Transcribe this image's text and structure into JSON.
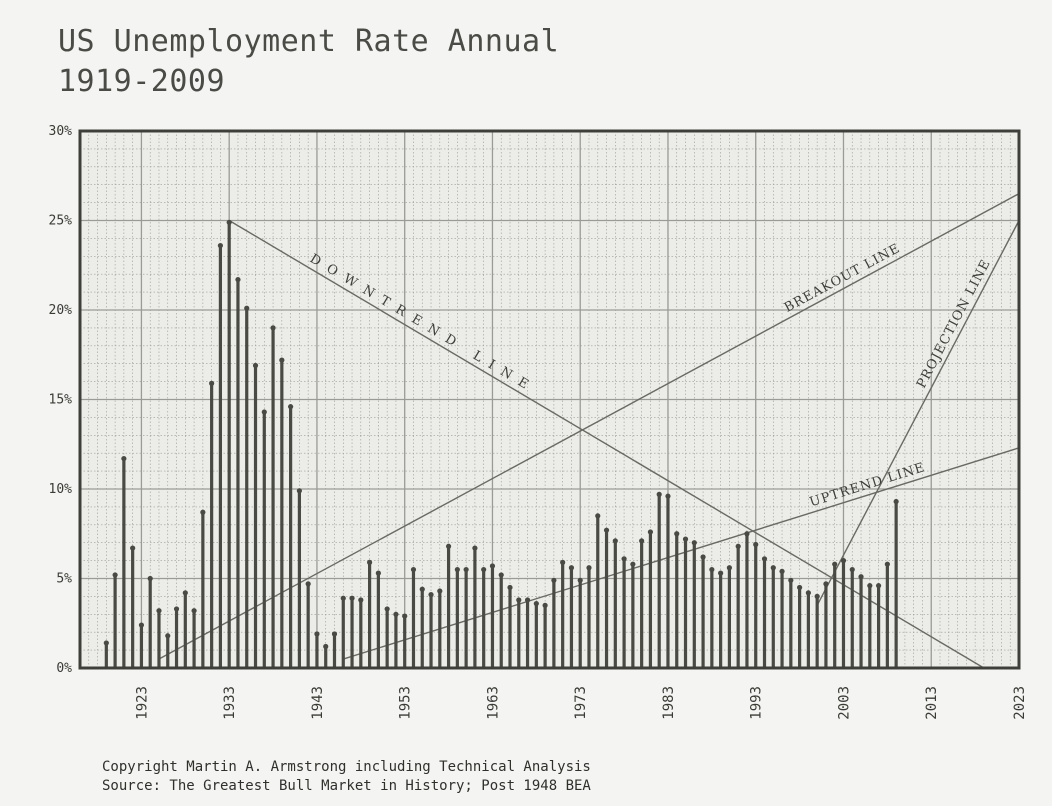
{
  "header": {
    "title": "US Unemployment Rate Annual",
    "subtitle": "1919-2009"
  },
  "footer": {
    "copyright": "Copyright Martin A. Armstrong including Technical Analysis",
    "source": "Source: The Greatest Bull Market in History; Post 1948 BEA"
  },
  "colors": {
    "background": "#f4f4f2",
    "grid": "#9a9a96",
    "bars": "#4a4a44",
    "trend": "#6a6a64",
    "text": "#3a3a36"
  },
  "chart_data": {
    "type": "bar",
    "title": "US Unemployment Rate Annual",
    "subtitle": "1919-2009",
    "xlabel": "",
    "ylabel": "",
    "xlim": [
      1916,
      2023
    ],
    "ylim": [
      0,
      30
    ],
    "grid": true,
    "yticks": [
      "0%",
      "5%",
      "10%",
      "15%",
      "20%",
      "25%",
      "30%"
    ],
    "ytick_values": [
      0,
      5,
      10,
      15,
      20,
      25,
      30
    ],
    "xticks": [
      "1923",
      "1933",
      "1943",
      "1953",
      "1963",
      "1973",
      "1983",
      "1993",
      "2003",
      "2013",
      "2023"
    ],
    "xtick_values": [
      1923,
      1933,
      1943,
      1953,
      1963,
      1973,
      1983,
      1993,
      2003,
      2013,
      2023
    ],
    "years": [
      1919,
      1920,
      1921,
      1922,
      1923,
      1924,
      1925,
      1926,
      1927,
      1928,
      1929,
      1930,
      1931,
      1932,
      1933,
      1934,
      1935,
      1936,
      1937,
      1938,
      1939,
      1940,
      1941,
      1942,
      1943,
      1944,
      1945,
      1946,
      1947,
      1948,
      1949,
      1950,
      1951,
      1952,
      1953,
      1954,
      1955,
      1956,
      1957,
      1958,
      1959,
      1960,
      1961,
      1962,
      1963,
      1964,
      1965,
      1966,
      1967,
      1968,
      1969,
      1970,
      1971,
      1972,
      1973,
      1974,
      1975,
      1976,
      1977,
      1978,
      1979,
      1980,
      1981,
      1982,
      1983,
      1984,
      1985,
      1986,
      1987,
      1988,
      1989,
      1990,
      1991,
      1992,
      1993,
      1994,
      1995,
      1996,
      1997,
      1998,
      1999,
      2000,
      2001,
      2002,
      2003,
      2004,
      2005,
      2006,
      2007,
      2008,
      2009
    ],
    "values": [
      1.4,
      5.2,
      11.7,
      6.7,
      2.4,
      5.0,
      3.2,
      1.8,
      3.3,
      4.2,
      3.2,
      8.7,
      15.9,
      23.6,
      24.9,
      21.7,
      20.1,
      16.9,
      14.3,
      19.0,
      17.2,
      14.6,
      9.9,
      4.7,
      1.9,
      1.2,
      1.9,
      3.9,
      3.9,
      3.8,
      5.9,
      5.3,
      3.3,
      3.0,
      2.9,
      5.5,
      4.4,
      4.1,
      4.3,
      6.8,
      5.5,
      5.5,
      6.7,
      5.5,
      5.7,
      5.2,
      4.5,
      3.8,
      3.8,
      3.6,
      3.5,
      4.9,
      5.9,
      5.6,
      4.9,
      5.6,
      8.5,
      7.7,
      7.1,
      6.1,
      5.8,
      7.1,
      7.6,
      9.7,
      9.6,
      7.5,
      7.2,
      7.0,
      6.2,
      5.5,
      5.3,
      5.6,
      6.8,
      7.5,
      6.9,
      6.1,
      5.6,
      5.4,
      4.9,
      4.5,
      4.2,
      4.0,
      4.7,
      5.8,
      6.0,
      5.5,
      5.1,
      4.6,
      4.6,
      5.8,
      9.3
    ],
    "annotations": [
      {
        "text": "DOWNTREND LINE",
        "from": [
          1933,
          25
        ],
        "to": [
          2019,
          0
        ]
      },
      {
        "text": "BREAKOUT LINE",
        "from": [
          1925,
          0.5
        ],
        "to": [
          2023,
          26.5
        ]
      },
      {
        "text": "UPTREND LINE",
        "from": [
          1946,
          0.5
        ],
        "to": [
          2023,
          12.3
        ]
      },
      {
        "text": "PROJECTION LINE",
        "from": [
          2000,
          3.5
        ],
        "to": [
          2023,
          25
        ]
      }
    ]
  }
}
